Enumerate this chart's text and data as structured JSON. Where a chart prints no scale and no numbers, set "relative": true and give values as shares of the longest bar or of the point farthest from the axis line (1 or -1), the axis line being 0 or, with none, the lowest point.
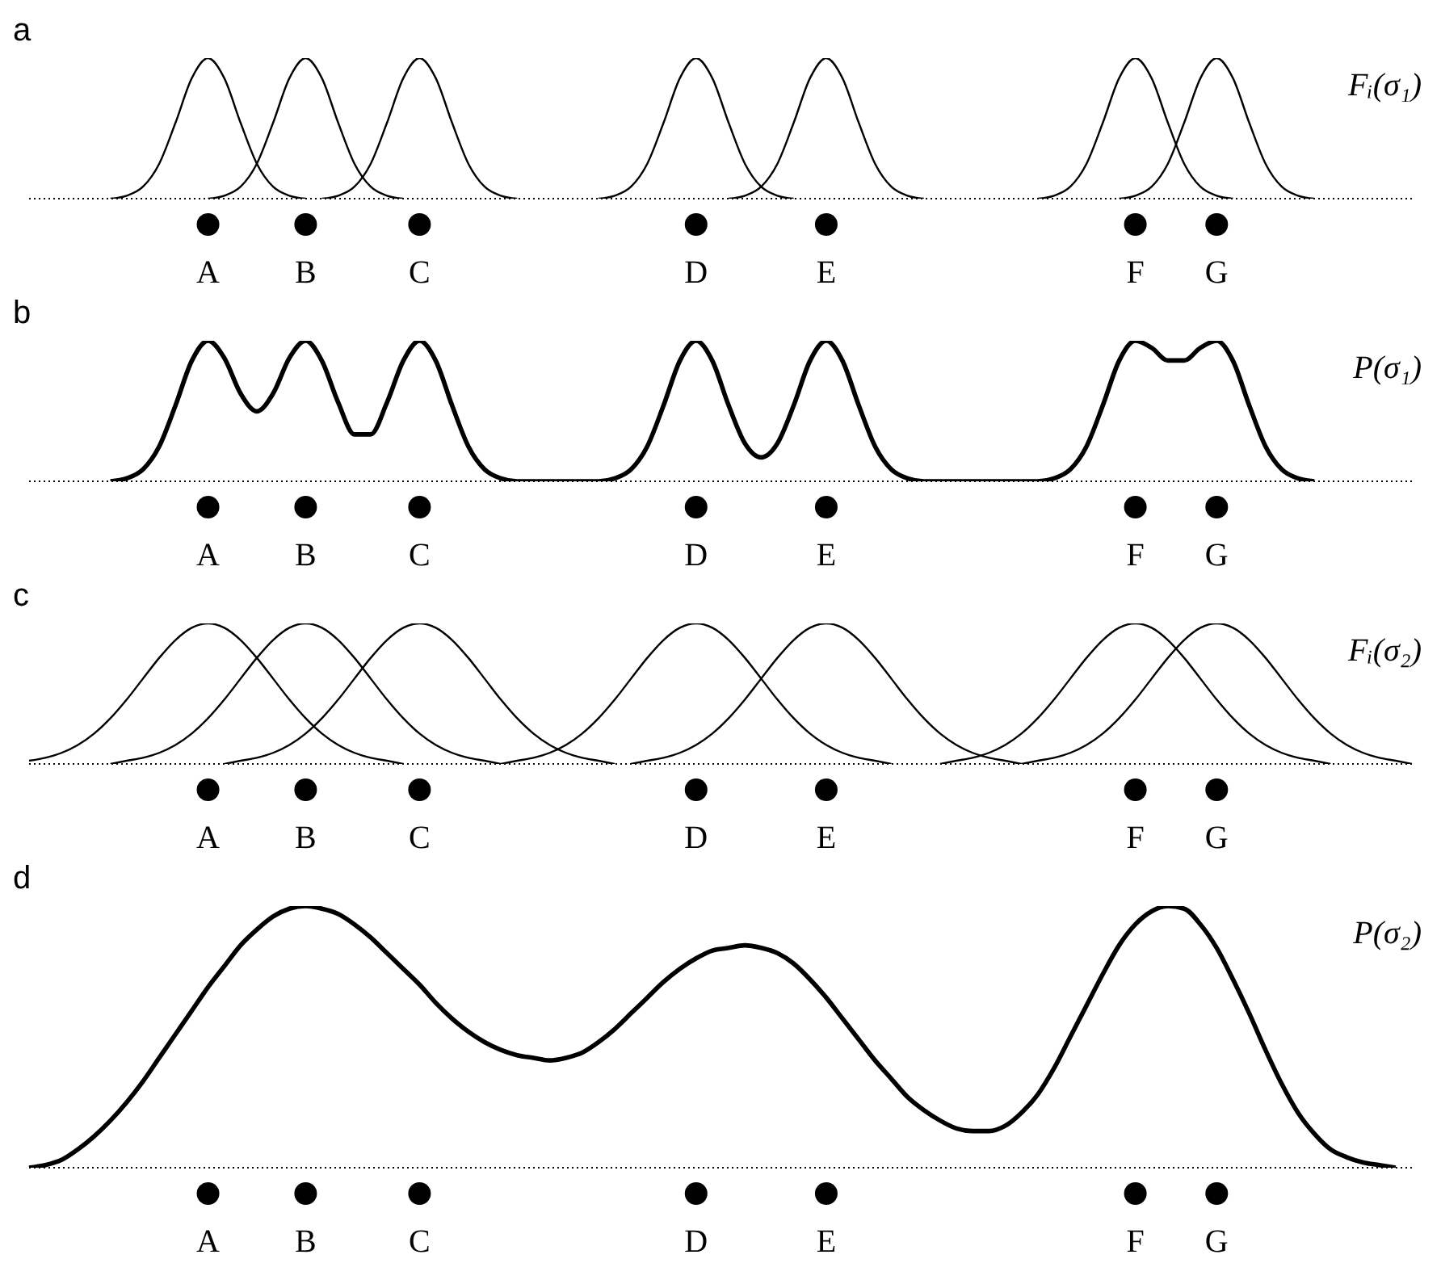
{
  "chart_data": [
    {
      "type": "line",
      "title": "a",
      "annotations": [
        "Fᵢ(σ₁)"
      ],
      "relative": true,
      "marker": "none",
      "line_style": "solid",
      "categories": [
        null,
        null,
        null,
        null,
        null,
        null,
        null,
        null,
        null,
        null,
        null,
        "A",
        null,
        null,
        null,
        null,
        null,
        "B",
        null,
        null,
        null,
        null,
        null,
        null,
        "C",
        null,
        null,
        null,
        null,
        null,
        null,
        null,
        null,
        null,
        null,
        null,
        null,
        null,
        null,
        null,
        null,
        "D",
        null,
        null,
        null,
        null,
        null,
        null,
        null,
        "E",
        null,
        null,
        null,
        null,
        null,
        null,
        null,
        null,
        null,
        null,
        null,
        null,
        null,
        null,
        null,
        null,
        null,
        null,
        "F",
        null,
        null,
        null,
        null,
        "G",
        null,
        null,
        null,
        null,
        null,
        null,
        null,
        null,
        null,
        null,
        null,
        null
      ],
      "series": [
        {
          "color": "#000000",
          "values": [
            null,
            null,
            null,
            null,
            null,
            0,
            0.021,
            0.085,
            0.249,
            0.54,
            0.857,
            1,
            0.857,
            0.54,
            0.249,
            0.085,
            0.021,
            0,
            null,
            null,
            null,
            null,
            null,
            null,
            null,
            null,
            null,
            null,
            null,
            null,
            null,
            null,
            null,
            null,
            null,
            null,
            null,
            null,
            null,
            null,
            null,
            null,
            null,
            null,
            null,
            null,
            null,
            null,
            null,
            null,
            null,
            null,
            null,
            null,
            null,
            null,
            null,
            null,
            null,
            null,
            null,
            null,
            null,
            null,
            null,
            null,
            null,
            null,
            null,
            null,
            null,
            null,
            null,
            null,
            null,
            null,
            null,
            null,
            null,
            null,
            null,
            null,
            null,
            null,
            null,
            null
          ]
        },
        {
          "color": "#000000",
          "values": [
            null,
            null,
            null,
            null,
            null,
            null,
            null,
            null,
            null,
            null,
            null,
            0,
            0.021,
            0.085,
            0.249,
            0.54,
            0.857,
            1,
            0.857,
            0.54,
            0.249,
            0.085,
            0.021,
            0,
            null,
            null,
            null,
            null,
            null,
            null,
            null,
            null,
            null,
            null,
            null,
            null,
            null,
            null,
            null,
            null,
            null,
            null,
            null,
            null,
            null,
            null,
            null,
            null,
            null,
            null,
            null,
            null,
            null,
            null,
            null,
            null,
            null,
            null,
            null,
            null,
            null,
            null,
            null,
            null,
            null,
            null,
            null,
            null,
            null,
            null,
            null,
            null,
            null,
            null,
            null,
            null,
            null,
            null,
            null,
            null,
            null,
            null,
            null,
            null,
            null,
            null
          ]
        },
        {
          "color": "#000000",
          "values": [
            null,
            null,
            null,
            null,
            null,
            null,
            null,
            null,
            null,
            null,
            null,
            null,
            null,
            null,
            null,
            null,
            null,
            null,
            0,
            0.021,
            0.085,
            0.249,
            0.54,
            0.857,
            1,
            0.857,
            0.54,
            0.249,
            0.085,
            0.021,
            0,
            null,
            null,
            null,
            null,
            null,
            null,
            null,
            null,
            null,
            null,
            null,
            null,
            null,
            null,
            null,
            null,
            null,
            null,
            null,
            null,
            null,
            null,
            null,
            null,
            null,
            null,
            null,
            null,
            null,
            null,
            null,
            null,
            null,
            null,
            null,
            null,
            null,
            null,
            null,
            null,
            null,
            null,
            null,
            null,
            null,
            null,
            null,
            null,
            null,
            null,
            null,
            null,
            null,
            null,
            null
          ]
        },
        {
          "color": "#000000",
          "values": [
            null,
            null,
            null,
            null,
            null,
            null,
            null,
            null,
            null,
            null,
            null,
            null,
            null,
            null,
            null,
            null,
            null,
            null,
            null,
            null,
            null,
            null,
            null,
            null,
            null,
            null,
            null,
            null,
            null,
            null,
            null,
            null,
            null,
            null,
            null,
            0,
            0.021,
            0.085,
            0.249,
            0.54,
            0.857,
            1,
            0.857,
            0.54,
            0.249,
            0.085,
            0.021,
            0,
            null,
            null,
            null,
            null,
            null,
            null,
            null,
            null,
            null,
            null,
            null,
            null,
            null,
            null,
            null,
            null,
            null,
            null,
            null,
            null,
            null,
            null,
            null,
            null,
            null,
            null,
            null,
            null,
            null,
            null,
            null,
            null,
            null,
            null,
            null,
            null,
            null,
            null
          ]
        },
        {
          "color": "#000000",
          "values": [
            null,
            null,
            null,
            null,
            null,
            null,
            null,
            null,
            null,
            null,
            null,
            null,
            null,
            null,
            null,
            null,
            null,
            null,
            null,
            null,
            null,
            null,
            null,
            null,
            null,
            null,
            null,
            null,
            null,
            null,
            null,
            null,
            null,
            null,
            null,
            null,
            null,
            null,
            null,
            null,
            null,
            null,
            null,
            0,
            0.021,
            0.085,
            0.249,
            0.54,
            0.857,
            1,
            0.857,
            0.54,
            0.249,
            0.085,
            0.021,
            0,
            null,
            null,
            null,
            null,
            null,
            null,
            null,
            null,
            null,
            null,
            null,
            null,
            null,
            null,
            null,
            null,
            null,
            null,
            null,
            null,
            null,
            null,
            null,
            null,
            null,
            null,
            null,
            null,
            null,
            null
          ]
        },
        {
          "color": "#000000",
          "values": [
            null,
            null,
            null,
            null,
            null,
            null,
            null,
            null,
            null,
            null,
            null,
            null,
            null,
            null,
            null,
            null,
            null,
            null,
            null,
            null,
            null,
            null,
            null,
            null,
            null,
            null,
            null,
            null,
            null,
            null,
            null,
            null,
            null,
            null,
            null,
            null,
            null,
            null,
            null,
            null,
            null,
            null,
            null,
            null,
            null,
            null,
            null,
            null,
            null,
            null,
            null,
            null,
            null,
            null,
            null,
            null,
            null,
            null,
            null,
            null,
            null,
            null,
            0,
            0.021,
            0.085,
            0.249,
            0.54,
            0.857,
            1,
            0.857,
            0.54,
            0.249,
            0.085,
            0.021,
            0,
            null,
            null,
            null,
            null,
            null,
            null,
            null,
            null,
            null,
            null,
            null
          ]
        },
        {
          "color": "#000000",
          "values": [
            null,
            null,
            null,
            null,
            null,
            null,
            null,
            null,
            null,
            null,
            null,
            null,
            null,
            null,
            null,
            null,
            null,
            null,
            null,
            null,
            null,
            null,
            null,
            null,
            null,
            null,
            null,
            null,
            null,
            null,
            null,
            null,
            null,
            null,
            null,
            null,
            null,
            null,
            null,
            null,
            null,
            null,
            null,
            null,
            null,
            null,
            null,
            null,
            null,
            null,
            null,
            null,
            null,
            null,
            null,
            null,
            null,
            null,
            null,
            null,
            null,
            null,
            null,
            null,
            null,
            null,
            null,
            0,
            0.021,
            0.085,
            0.249,
            0.54,
            0.857,
            1,
            0.857,
            0.54,
            0.249,
            0.085,
            0.021,
            0,
            null,
            null,
            null,
            null,
            null,
            null
          ]
        }
      ]
    },
    {
      "type": "line",
      "title": "b",
      "annotations": [
        "P(σ₁)"
      ],
      "relative": true,
      "marker": "none",
      "line_style": "solid",
      "categories": [
        null,
        null,
        null,
        null,
        null,
        null,
        null,
        null,
        null,
        null,
        null,
        "A",
        null,
        null,
        null,
        null,
        null,
        "B",
        null,
        null,
        null,
        null,
        null,
        null,
        "C",
        null,
        null,
        null,
        null,
        null,
        null,
        null,
        null,
        null,
        null,
        null,
        null,
        null,
        null,
        null,
        null,
        "D",
        null,
        null,
        null,
        null,
        null,
        null,
        null,
        "E",
        null,
        null,
        null,
        null,
        null,
        null,
        null,
        null,
        null,
        null,
        null,
        null,
        null,
        null,
        null,
        null,
        null,
        null,
        "F",
        null,
        null,
        null,
        null,
        "G",
        null,
        null,
        null,
        null,
        null,
        null,
        null,
        null,
        null,
        null,
        null,
        null
      ],
      "series": [
        {
          "color": "#000000",
          "values": [
            null,
            null,
            null,
            null,
            null,
            0,
            0.021,
            0.085,
            0.249,
            0.54,
            0.857,
            1,
            0.878,
            0.625,
            0.498,
            0.625,
            0.878,
            1,
            0.857,
            0.561,
            0.334,
            0.334,
            0.561,
            0.857,
            1,
            0.857,
            0.54,
            0.249,
            0.085,
            0.021,
            0,
            0,
            0,
            0,
            0,
            0,
            0.021,
            0.085,
            0.249,
            0.54,
            0.857,
            1,
            0.857,
            0.54,
            0.27,
            0.17,
            0.27,
            0.54,
            0.857,
            1,
            0.857,
            0.54,
            0.249,
            0.085,
            0.021,
            0,
            0,
            0,
            0,
            0,
            0,
            0,
            0,
            0.021,
            0.085,
            0.249,
            0.54,
            0.857,
            1,
            0.95,
            0.86,
            0.86,
            0.95,
            1,
            0.857,
            0.54,
            0.249,
            0.085,
            0.021,
            0,
            null,
            null,
            null,
            null,
            null,
            null
          ]
        }
      ]
    },
    {
      "type": "line",
      "title": "c",
      "annotations": [
        "Fᵢ(σ₂)"
      ],
      "relative": true,
      "marker": "none",
      "line_style": "solid",
      "categories": [
        null,
        null,
        null,
        null,
        null,
        null,
        null,
        null,
        null,
        null,
        null,
        "A",
        null,
        null,
        null,
        null,
        null,
        "B",
        null,
        null,
        null,
        null,
        null,
        null,
        "C",
        null,
        null,
        null,
        null,
        null,
        null,
        null,
        null,
        null,
        null,
        null,
        null,
        null,
        null,
        null,
        null,
        "D",
        null,
        null,
        null,
        null,
        null,
        null,
        null,
        "E",
        null,
        null,
        null,
        null,
        null,
        null,
        null,
        null,
        null,
        null,
        null,
        null,
        null,
        null,
        null,
        null,
        null,
        null,
        "F",
        null,
        null,
        null,
        null,
        "G",
        null,
        null,
        null,
        null,
        null,
        null,
        null,
        null,
        null,
        null,
        null,
        null
      ],
      "series": [
        {
          "color": "#000000",
          "values": [
            0.023,
            0.044,
            0.079,
            0.135,
            0.216,
            0.325,
            0.458,
            0.607,
            0.755,
            0.882,
            0.969,
            1,
            0.969,
            0.882,
            0.755,
            0.607,
            0.458,
            0.325,
            0.216,
            0.135,
            0.079,
            0.044,
            0.023,
            0,
            null,
            null,
            null,
            null,
            null,
            null,
            null,
            null,
            null,
            null,
            null,
            null,
            null,
            null,
            null,
            null,
            null,
            null,
            null,
            null,
            null,
            null,
            null,
            null,
            null,
            null,
            null,
            null,
            null,
            null,
            null,
            null,
            null,
            null,
            null,
            null,
            null,
            null,
            null,
            null,
            null,
            null,
            null,
            null,
            null,
            null,
            null,
            null,
            null,
            null,
            null,
            null,
            null,
            null,
            null,
            null,
            null,
            null,
            null,
            null,
            null,
            null
          ]
        },
        {
          "color": "#000000",
          "values": [
            null,
            null,
            null,
            null,
            null,
            0,
            0.023,
            0.044,
            0.079,
            0.135,
            0.216,
            0.325,
            0.458,
            0.607,
            0.755,
            0.882,
            0.969,
            1,
            0.969,
            0.882,
            0.755,
            0.607,
            0.458,
            0.325,
            0.216,
            0.135,
            0.079,
            0.044,
            0.023,
            0,
            null,
            null,
            null,
            null,
            null,
            null,
            null,
            null,
            null,
            null,
            null,
            null,
            null,
            null,
            null,
            null,
            null,
            null,
            null,
            null,
            null,
            null,
            null,
            null,
            null,
            null,
            null,
            null,
            null,
            null,
            null,
            null,
            null,
            null,
            null,
            null,
            null,
            null,
            null,
            null,
            null,
            null,
            null,
            null,
            null,
            null,
            null,
            null,
            null,
            null,
            null,
            null,
            null,
            null,
            null,
            null
          ]
        },
        {
          "color": "#000000",
          "values": [
            null,
            null,
            null,
            null,
            null,
            null,
            null,
            null,
            null,
            null,
            null,
            null,
            0,
            0.023,
            0.044,
            0.079,
            0.135,
            0.216,
            0.325,
            0.458,
            0.607,
            0.755,
            0.882,
            0.969,
            1,
            0.969,
            0.882,
            0.755,
            0.607,
            0.458,
            0.325,
            0.216,
            0.135,
            0.079,
            0.044,
            0.023,
            0,
            null,
            null,
            null,
            null,
            null,
            null,
            null,
            null,
            null,
            null,
            null,
            null,
            null,
            null,
            null,
            null,
            null,
            null,
            null,
            null,
            null,
            null,
            null,
            null,
            null,
            null,
            null,
            null,
            null,
            null,
            null,
            null,
            null,
            null,
            null,
            null,
            null,
            null,
            null,
            null,
            null,
            null,
            null,
            null,
            null,
            null,
            null,
            null,
            null
          ]
        },
        {
          "color": "#000000",
          "values": [
            null,
            null,
            null,
            null,
            null,
            null,
            null,
            null,
            null,
            null,
            null,
            null,
            null,
            null,
            null,
            null,
            null,
            null,
            null,
            null,
            null,
            null,
            null,
            null,
            null,
            null,
            null,
            null,
            null,
            0,
            0.023,
            0.044,
            0.079,
            0.135,
            0.216,
            0.325,
            0.458,
            0.607,
            0.755,
            0.882,
            0.969,
            1,
            0.969,
            0.882,
            0.755,
            0.607,
            0.458,
            0.325,
            0.216,
            0.135,
            0.079,
            0.044,
            0.023,
            0,
            null,
            null,
            null,
            null,
            null,
            null,
            null,
            null,
            null,
            null,
            null,
            null,
            null,
            null,
            null,
            null,
            null,
            null,
            null,
            null,
            null,
            null,
            null,
            null,
            null,
            null,
            null,
            null,
            null,
            null,
            null,
            null
          ]
        },
        {
          "color": "#000000",
          "values": [
            null,
            null,
            null,
            null,
            null,
            null,
            null,
            null,
            null,
            null,
            null,
            null,
            null,
            null,
            null,
            null,
            null,
            null,
            null,
            null,
            null,
            null,
            null,
            null,
            null,
            null,
            null,
            null,
            null,
            null,
            null,
            null,
            null,
            null,
            null,
            null,
            null,
            0,
            0.023,
            0.044,
            0.079,
            0.135,
            0.216,
            0.325,
            0.458,
            0.607,
            0.755,
            0.882,
            0.969,
            1,
            0.969,
            0.882,
            0.755,
            0.607,
            0.458,
            0.325,
            0.216,
            0.135,
            0.079,
            0.044,
            0.023,
            0,
            null,
            null,
            null,
            null,
            null,
            null,
            null,
            null,
            null,
            null,
            null,
            null,
            null,
            null,
            null,
            null,
            null,
            null,
            null,
            null,
            null,
            null,
            null,
            null
          ]
        },
        {
          "color": "#000000",
          "values": [
            null,
            null,
            null,
            null,
            null,
            null,
            null,
            null,
            null,
            null,
            null,
            null,
            null,
            null,
            null,
            null,
            null,
            null,
            null,
            null,
            null,
            null,
            null,
            null,
            null,
            null,
            null,
            null,
            null,
            null,
            null,
            null,
            null,
            null,
            null,
            null,
            null,
            null,
            null,
            null,
            null,
            null,
            null,
            null,
            null,
            null,
            null,
            null,
            null,
            null,
            null,
            null,
            null,
            null,
            null,
            null,
            0,
            0.023,
            0.044,
            0.079,
            0.135,
            0.216,
            0.325,
            0.458,
            0.607,
            0.755,
            0.882,
            0.969,
            1,
            0.969,
            0.882,
            0.755,
            0.607,
            0.458,
            0.325,
            0.216,
            0.135,
            0.079,
            0.044,
            0.023,
            0,
            null,
            null,
            null,
            null,
            null
          ]
        },
        {
          "color": "#000000",
          "values": [
            null,
            null,
            null,
            null,
            null,
            null,
            null,
            null,
            null,
            null,
            null,
            null,
            null,
            null,
            null,
            null,
            null,
            null,
            null,
            null,
            null,
            null,
            null,
            null,
            null,
            null,
            null,
            null,
            null,
            null,
            null,
            null,
            null,
            null,
            null,
            null,
            null,
            null,
            null,
            null,
            null,
            null,
            null,
            null,
            null,
            null,
            null,
            null,
            null,
            null,
            null,
            null,
            null,
            null,
            null,
            null,
            null,
            null,
            null,
            null,
            null,
            0,
            0.023,
            0.044,
            0.079,
            0.135,
            0.216,
            0.325,
            0.458,
            0.607,
            0.755,
            0.882,
            0.969,
            1,
            0.969,
            0.882,
            0.755,
            0.607,
            0.458,
            0.325,
            0.216,
            0.135,
            0.079,
            0.044,
            0.023,
            0
          ]
        }
      ]
    },
    {
      "type": "line",
      "title": "d",
      "annotations": [
        "P(σ₂)"
      ],
      "relative": true,
      "marker": "none",
      "line_style": "solid",
      "categories": [
        null,
        null,
        null,
        null,
        null,
        null,
        null,
        null,
        null,
        null,
        null,
        "A",
        null,
        null,
        null,
        null,
        null,
        "B",
        null,
        null,
        null,
        null,
        null,
        null,
        "C",
        null,
        null,
        null,
        null,
        null,
        null,
        null,
        null,
        null,
        null,
        null,
        null,
        null,
        null,
        null,
        null,
        "D",
        null,
        null,
        null,
        null,
        null,
        null,
        null,
        "E",
        null,
        null,
        null,
        null,
        null,
        null,
        null,
        null,
        null,
        null,
        null,
        null,
        null,
        null,
        null,
        null,
        null,
        null,
        "F",
        null,
        null,
        null,
        null,
        "G",
        null,
        null,
        null,
        null,
        null,
        null,
        null,
        null,
        null,
        null,
        null,
        null
      ],
      "series": [
        {
          "color": "#000000",
          "values": [
            0,
            0.01,
            0.03,
            0.07,
            0.12,
            0.18,
            0.25,
            0.33,
            0.42,
            0.51,
            0.6,
            0.69,
            0.77,
            0.85,
            0.91,
            0.96,
            0.99,
            1,
            0.99,
            0.97,
            0.93,
            0.88,
            0.82,
            0.76,
            0.7,
            0.63,
            0.57,
            0.52,
            0.48,
            0.45,
            0.43,
            0.42,
            0.41,
            0.42,
            0.44,
            0.48,
            0.53,
            0.59,
            0.65,
            0.71,
            0.76,
            0.8,
            0.83,
            0.84,
            0.85,
            0.84,
            0.82,
            0.78,
            0.72,
            0.65,
            0.57,
            0.49,
            0.41,
            0.34,
            0.27,
            0.22,
            0.18,
            0.15,
            0.14,
            0.14,
            0.16,
            0.21,
            0.28,
            0.38,
            0.5,
            0.62,
            0.74,
            0.85,
            0.93,
            0.98,
            1,
            0.99,
            0.93,
            0.84,
            0.72,
            0.59,
            0.45,
            0.32,
            0.21,
            0.13,
            0.07,
            0.04,
            0.02,
            0.01,
            0,
            null
          ]
        }
      ]
    }
  ]
}
